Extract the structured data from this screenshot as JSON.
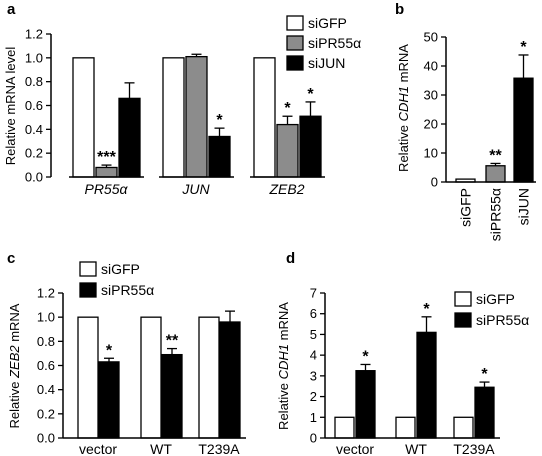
{
  "colors": {
    "siGFP": "#ffffff",
    "siPR55": "#8c8c8c",
    "siJUN": "#000000",
    "stroke": "#000000"
  },
  "chart_data": [
    {
      "panel": "a",
      "type": "bar",
      "ylabel": "Relative mRNA level",
      "ylim": [
        0,
        1.2
      ],
      "yticks": [
        "0.0",
        "0.2",
        "0.4",
        "0.6",
        "0.8",
        "1.0",
        "1.2"
      ],
      "categories": [
        "PR55α",
        "JUN",
        "ZEB2"
      ],
      "category_italic": true,
      "legend": [
        "siGFP",
        "siPR55α",
        "siJUN"
      ],
      "series": [
        {
          "name": "siGFP",
          "values": [
            1.0,
            1.0,
            1.0
          ],
          "errors": [
            0,
            0,
            0
          ],
          "stars": [
            "",
            "",
            ""
          ]
        },
        {
          "name": "siPR55α",
          "values": [
            0.08,
            1.01,
            0.44
          ],
          "errors": [
            0.02,
            0.02,
            0.07
          ],
          "stars": [
            "***",
            "",
            "*"
          ]
        },
        {
          "name": "siJUN",
          "values": [
            0.66,
            0.34,
            0.51
          ],
          "errors": [
            0.13,
            0.07,
            0.12
          ],
          "stars": [
            "",
            "*",
            "*"
          ]
        }
      ]
    },
    {
      "panel": "b",
      "type": "bar",
      "ylabel_pre": "Relative ",
      "ylabel_ital": "CDH1",
      "ylabel_post": " mRNA",
      "ylim": [
        0,
        50
      ],
      "yticks": [
        "0",
        "10",
        "20",
        "30",
        "40",
        "50"
      ],
      "categories": [
        "siGFP",
        "siPR55α",
        "siJUN"
      ],
      "values": [
        1.0,
        5.6,
        35.8
      ],
      "errors": [
        0,
        0.8,
        8.0
      ],
      "stars": [
        "",
        "**",
        "*"
      ]
    },
    {
      "panel": "c",
      "type": "bar",
      "ylabel_pre": "Relative ",
      "ylabel_ital": "ZEB2",
      "ylabel_post": " mRNA",
      "ylim": [
        0,
        1.2
      ],
      "yticks": [
        "0.0",
        "0.2",
        "0.4",
        "0.6",
        "0.8",
        "1.0",
        "1.2"
      ],
      "categories": [
        "vector",
        "WT",
        "T239A"
      ],
      "legend": [
        "siGFP",
        "siPR55α"
      ],
      "series": [
        {
          "name": "siGFP",
          "values": [
            1.0,
            1.0,
            1.0
          ],
          "errors": [
            0,
            0,
            0
          ],
          "stars": [
            "",
            "",
            ""
          ]
        },
        {
          "name": "siPR55α",
          "values": [
            0.63,
            0.69,
            0.96
          ],
          "errors": [
            0.03,
            0.05,
            0.09
          ],
          "stars": [
            "*",
            "**",
            ""
          ]
        }
      ]
    },
    {
      "panel": "d",
      "type": "bar",
      "ylabel_pre": "Relative ",
      "ylabel_ital": "CDH1",
      "ylabel_post": " mRNA",
      "ylim": [
        0,
        7
      ],
      "yticks": [
        "0",
        "1",
        "2",
        "3",
        "4",
        "5",
        "6",
        "7"
      ],
      "categories": [
        "vector",
        "WT",
        "T239A"
      ],
      "legend": [
        "siGFP",
        "siPR55α"
      ],
      "series": [
        {
          "name": "siGFP",
          "values": [
            1.0,
            1.0,
            1.0
          ],
          "errors": [
            0,
            0,
            0
          ],
          "stars": [
            "",
            "",
            ""
          ]
        },
        {
          "name": "siPR55α",
          "values": [
            3.25,
            5.1,
            2.45
          ],
          "errors": [
            0.3,
            0.75,
            0.25
          ],
          "stars": [
            "*",
            "*",
            "*"
          ]
        }
      ]
    }
  ]
}
